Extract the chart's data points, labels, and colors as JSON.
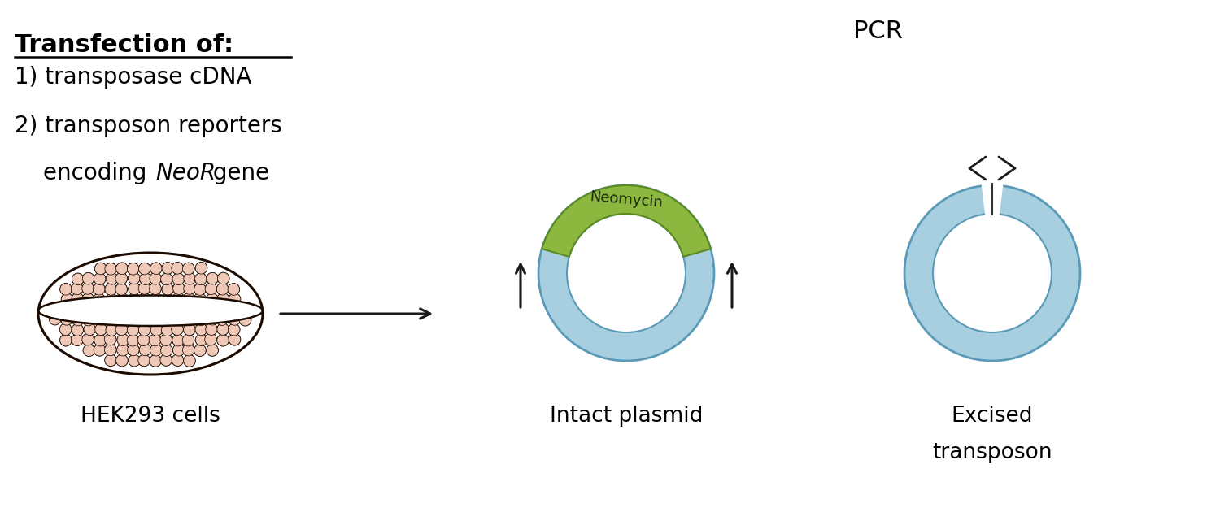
{
  "bg_color": "#ffffff",
  "text_transfection_title": "Transfection of:",
  "text_line1": "1) transposase cDNA",
  "text_line2": "2) transposon reporters",
  "text_hek": "HEK293 cells",
  "text_pcr": "PCR",
  "text_intact": "Intact plasmid",
  "text_excised1": "Excised",
  "text_excised2": "transposon",
  "text_neomycin": "Neomycin",
  "plasmid_blue_light": "#a8cfe0",
  "plasmid_blue_dark": "#5a9ab8",
  "neomycin_green_light": "#8db840",
  "neomycin_green_dark": "#5a8a20",
  "cell_pink": "#f0c8b8",
  "cell_dark": "#1a0a00",
  "arrow_color": "#1a1a1a",
  "font_size_title": 22,
  "font_size_main": 20,
  "font_size_label": 19,
  "font_size_pcr": 22,
  "font_size_neomycin": 13
}
